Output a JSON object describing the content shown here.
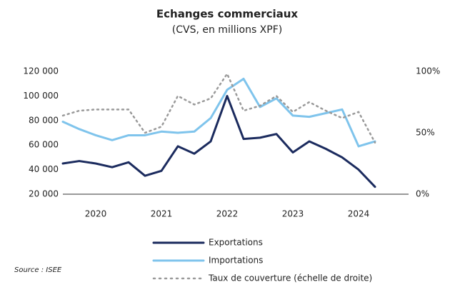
{
  "chart_data": {
    "type": "line",
    "title": "Echanges commerciaux",
    "subtitle": "(CVS, en millions XPF)",
    "source": "Source : ISEE",
    "categories": [
      null,
      null,
      "2020",
      null,
      null,
      null,
      "2021",
      null,
      null,
      null,
      "2022",
      null,
      null,
      null,
      "2023",
      null,
      null,
      null,
      "2024",
      null
    ],
    "series": [
      {
        "name": "Exportations",
        "color": "#1b2b5e",
        "values": [
          45000,
          47000,
          45000,
          42000,
          46000,
          35000,
          39000,
          59000,
          53000,
          63000,
          100000,
          65000,
          66000,
          69000,
          54000,
          63000,
          57000,
          50000,
          40000,
          26000
        ]
      },
      {
        "name": "Importations",
        "color": "#7fc4ec",
        "values": [
          79000,
          73000,
          68000,
          64000,
          68000,
          68000,
          71000,
          70000,
          71000,
          82000,
          105000,
          114000,
          91000,
          98000,
          84000,
          83000,
          86000,
          89000,
          59000,
          63000
        ]
      },
      {
        "name": "Taux de couverture (échelle de droite)",
        "color": "#9a9a9a",
        "dash": "dotted",
        "axis": "y2",
        "values": [
          64,
          68,
          69,
          69,
          69,
          50,
          55,
          80,
          73,
          78,
          98,
          68,
          72,
          80,
          67,
          75,
          68,
          62,
          67,
          42
        ]
      }
    ],
    "ylim": [
      20000,
      120000
    ],
    "yticks": [
      {
        "value": 20000,
        "label": "20 000"
      },
      {
        "value": 40000,
        "label": "40 000"
      },
      {
        "value": 60000,
        "label": "60 000"
      },
      {
        "value": 80000,
        "label": "80 000"
      },
      {
        "value": 100000,
        "label": "100 000"
      },
      {
        "value": 120000,
        "label": "120 000"
      }
    ],
    "y2lim": [
      0,
      100
    ],
    "y2ticks": [
      {
        "value": 0,
        "label": "0%"
      },
      {
        "value": 50,
        "label": "50%"
      },
      {
        "value": 100,
        "label": "100%"
      }
    ]
  }
}
